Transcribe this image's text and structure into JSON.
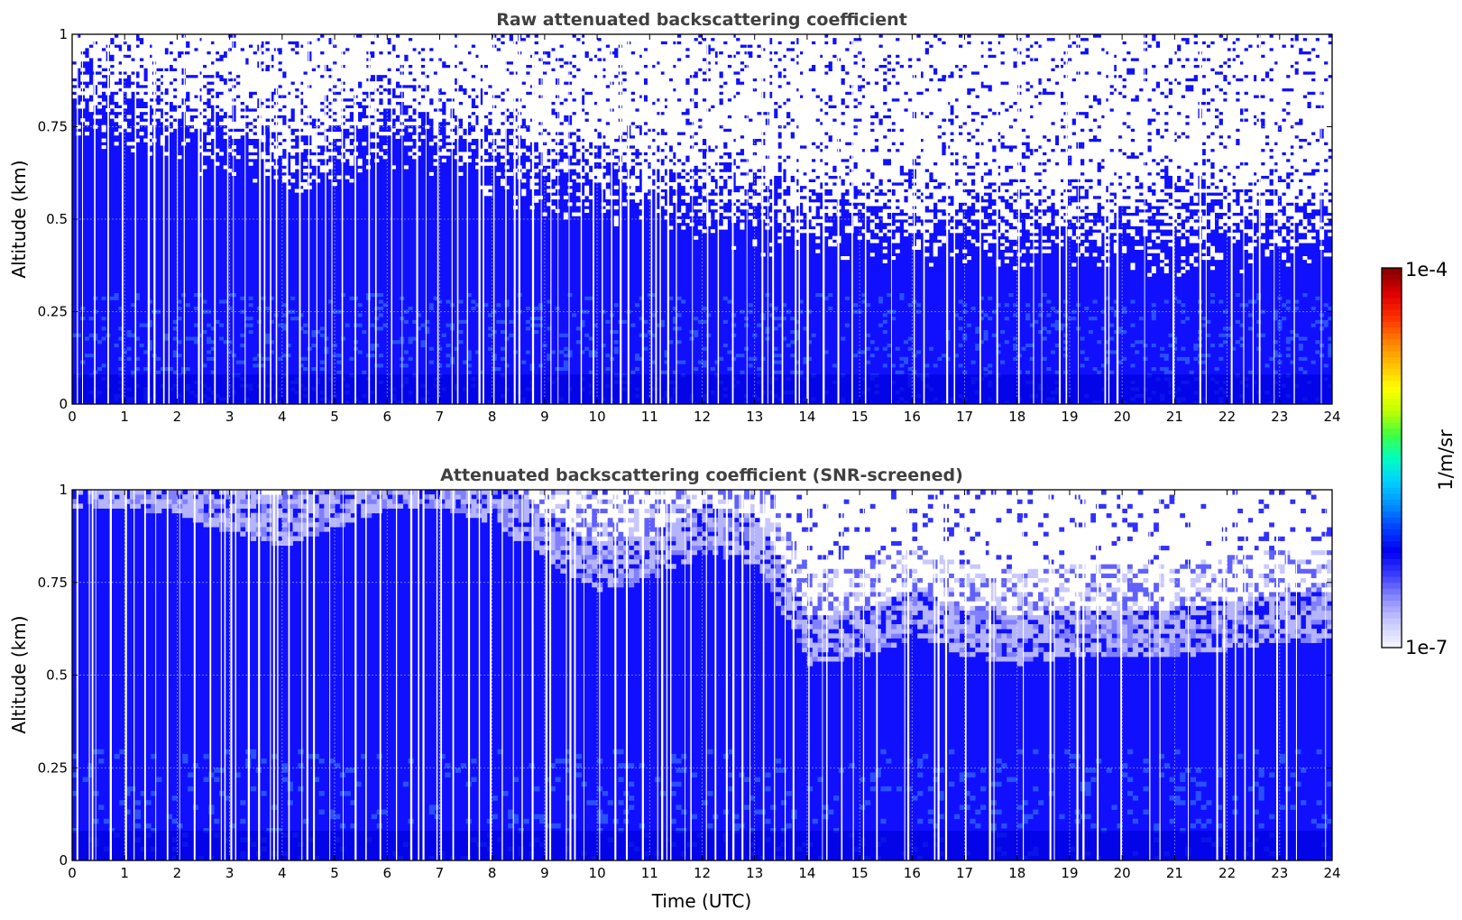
{
  "chart_data": [
    {
      "type": "heatmap",
      "title": "Raw attenuated backscattering coefficient",
      "xlabel": "",
      "ylabel": "Altitude (km)",
      "xlim": [
        0,
        24
      ],
      "ylim": [
        0,
        1
      ],
      "x_ticks": [
        "0",
        "1",
        "2",
        "3",
        "4",
        "5",
        "6",
        "7",
        "8",
        "9",
        "10",
        "11",
        "12",
        "13",
        "14",
        "15",
        "16",
        "17",
        "18",
        "19",
        "20",
        "21",
        "22",
        "23",
        "24"
      ],
      "y_ticks": [
        "0",
        "0.25",
        "0.5",
        "0.75",
        "1"
      ],
      "grid": true,
      "variant": "raw",
      "noise_altitude_by_hour": [
        0.82,
        0.8,
        0.75,
        0.72,
        0.65,
        0.68,
        0.75,
        0.72,
        0.66,
        0.62,
        0.6,
        0.58,
        0.55,
        0.52,
        0.5,
        0.5,
        0.49,
        0.48,
        0.47,
        0.46,
        0.46,
        0.46,
        0.47,
        0.47,
        0.47
      ]
    },
    {
      "type": "heatmap",
      "title": "Attenuated backscattering coefficient (SNR-screened)",
      "xlabel": "Time (UTC)",
      "ylabel": "Altitude (km)",
      "xlim": [
        0,
        24
      ],
      "ylim": [
        0,
        1
      ],
      "x_ticks": [
        "0",
        "1",
        "2",
        "3",
        "4",
        "5",
        "6",
        "7",
        "8",
        "9",
        "10",
        "11",
        "12",
        "13",
        "14",
        "15",
        "16",
        "17",
        "18",
        "19",
        "20",
        "21",
        "22",
        "23",
        "24"
      ],
      "y_ticks": [
        "0",
        "0.25",
        "0.5",
        "0.75",
        "1"
      ],
      "grid": true,
      "variant": "screened",
      "screen_top_by_hour": [
        1.0,
        1.0,
        0.98,
        0.93,
        0.9,
        0.95,
        1.0,
        1.0,
        0.96,
        0.85,
        0.78,
        0.8,
        0.88,
        0.85,
        0.58,
        0.6,
        0.65,
        0.6,
        0.58,
        0.6,
        0.6,
        0.6,
        0.62,
        0.64,
        0.64
      ]
    }
  ],
  "colorbar": {
    "label": "1/m/sr",
    "max_label": "1e-4",
    "min_label": "1e-7",
    "colormap": [
      "#f2f2ff",
      "#c8c8ff",
      "#8c8cff",
      "#3c3cff",
      "#0000f0",
      "#0040ff",
      "#0090ff",
      "#00d0ff",
      "#00ffc0",
      "#40ff40",
      "#c0ff00",
      "#ffff00",
      "#ffc000",
      "#ff8000",
      "#ff3000",
      "#e00000",
      "#8b0000"
    ]
  }
}
